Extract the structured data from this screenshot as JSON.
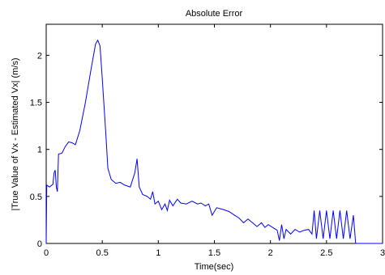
{
  "chart_data": {
    "type": "line",
    "title": "Absolute Error",
    "x_label": "Time(sec)",
    "y_label": "|True Value of Vx - Estimated Vx| (m/s)",
    "xlim": [
      0,
      3
    ],
    "ylim": [
      0,
      2.33
    ],
    "xticks": [
      0,
      0.5,
      1,
      1.5,
      2,
      2.5,
      3
    ],
    "yticks": [
      0,
      0.5,
      1,
      1.5,
      2
    ],
    "series": [
      {
        "name": "error",
        "color": "#0000ff",
        "x": [
          0,
          0.005,
          0.03,
          0.06,
          0.07,
          0.08,
          0.09,
          0.1,
          0.11,
          0.14,
          0.17,
          0.2,
          0.23,
          0.26,
          0.3,
          0.35,
          0.4,
          0.44,
          0.46,
          0.48,
          0.5,
          0.53,
          0.55,
          0.58,
          0.62,
          0.66,
          0.7,
          0.75,
          0.79,
          0.81,
          0.83,
          0.86,
          0.9,
          0.93,
          0.95,
          0.97,
          1.0,
          1.03,
          1.06,
          1.08,
          1.1,
          1.13,
          1.17,
          1.2,
          1.25,
          1.3,
          1.35,
          1.38,
          1.42,
          1.45,
          1.48,
          1.52,
          1.58,
          1.63,
          1.68,
          1.72,
          1.76,
          1.8,
          1.84,
          1.88,
          1.92,
          1.95,
          1.98,
          2.02,
          2.06,
          2.08,
          2.1,
          2.12,
          2.14,
          2.18,
          2.22,
          2.26,
          2.3,
          2.34,
          2.37,
          2.39,
          2.41,
          2.44,
          2.47,
          2.5,
          2.53,
          2.56,
          2.59,
          2.62,
          2.65,
          2.68,
          2.71,
          2.74,
          2.76,
          3.0
        ],
        "values": [
          0,
          0.62,
          0.6,
          0.63,
          0.75,
          0.78,
          0.6,
          0.55,
          0.95,
          0.96,
          1.03,
          1.08,
          1.07,
          1.05,
          1.2,
          1.5,
          1.85,
          2.12,
          2.16,
          2.1,
          1.75,
          1.2,
          0.8,
          0.68,
          0.64,
          0.65,
          0.62,
          0.6,
          0.75,
          0.9,
          0.6,
          0.52,
          0.5,
          0.47,
          0.55,
          0.42,
          0.45,
          0.36,
          0.42,
          0.35,
          0.46,
          0.4,
          0.47,
          0.43,
          0.42,
          0.45,
          0.42,
          0.43,
          0.4,
          0.42,
          0.3,
          0.38,
          0.36,
          0.34,
          0.3,
          0.27,
          0.22,
          0.26,
          0.22,
          0.18,
          0.22,
          0.17,
          0.2,
          0.17,
          0.14,
          0.03,
          0.2,
          0.05,
          0.15,
          0.1,
          0.15,
          0.12,
          0.14,
          0.15,
          0.1,
          0.35,
          0.05,
          0.35,
          0.05,
          0.35,
          0.05,
          0.35,
          0.05,
          0.35,
          0.05,
          0.35,
          0.05,
          0.3,
          0,
          0
        ]
      }
    ]
  }
}
